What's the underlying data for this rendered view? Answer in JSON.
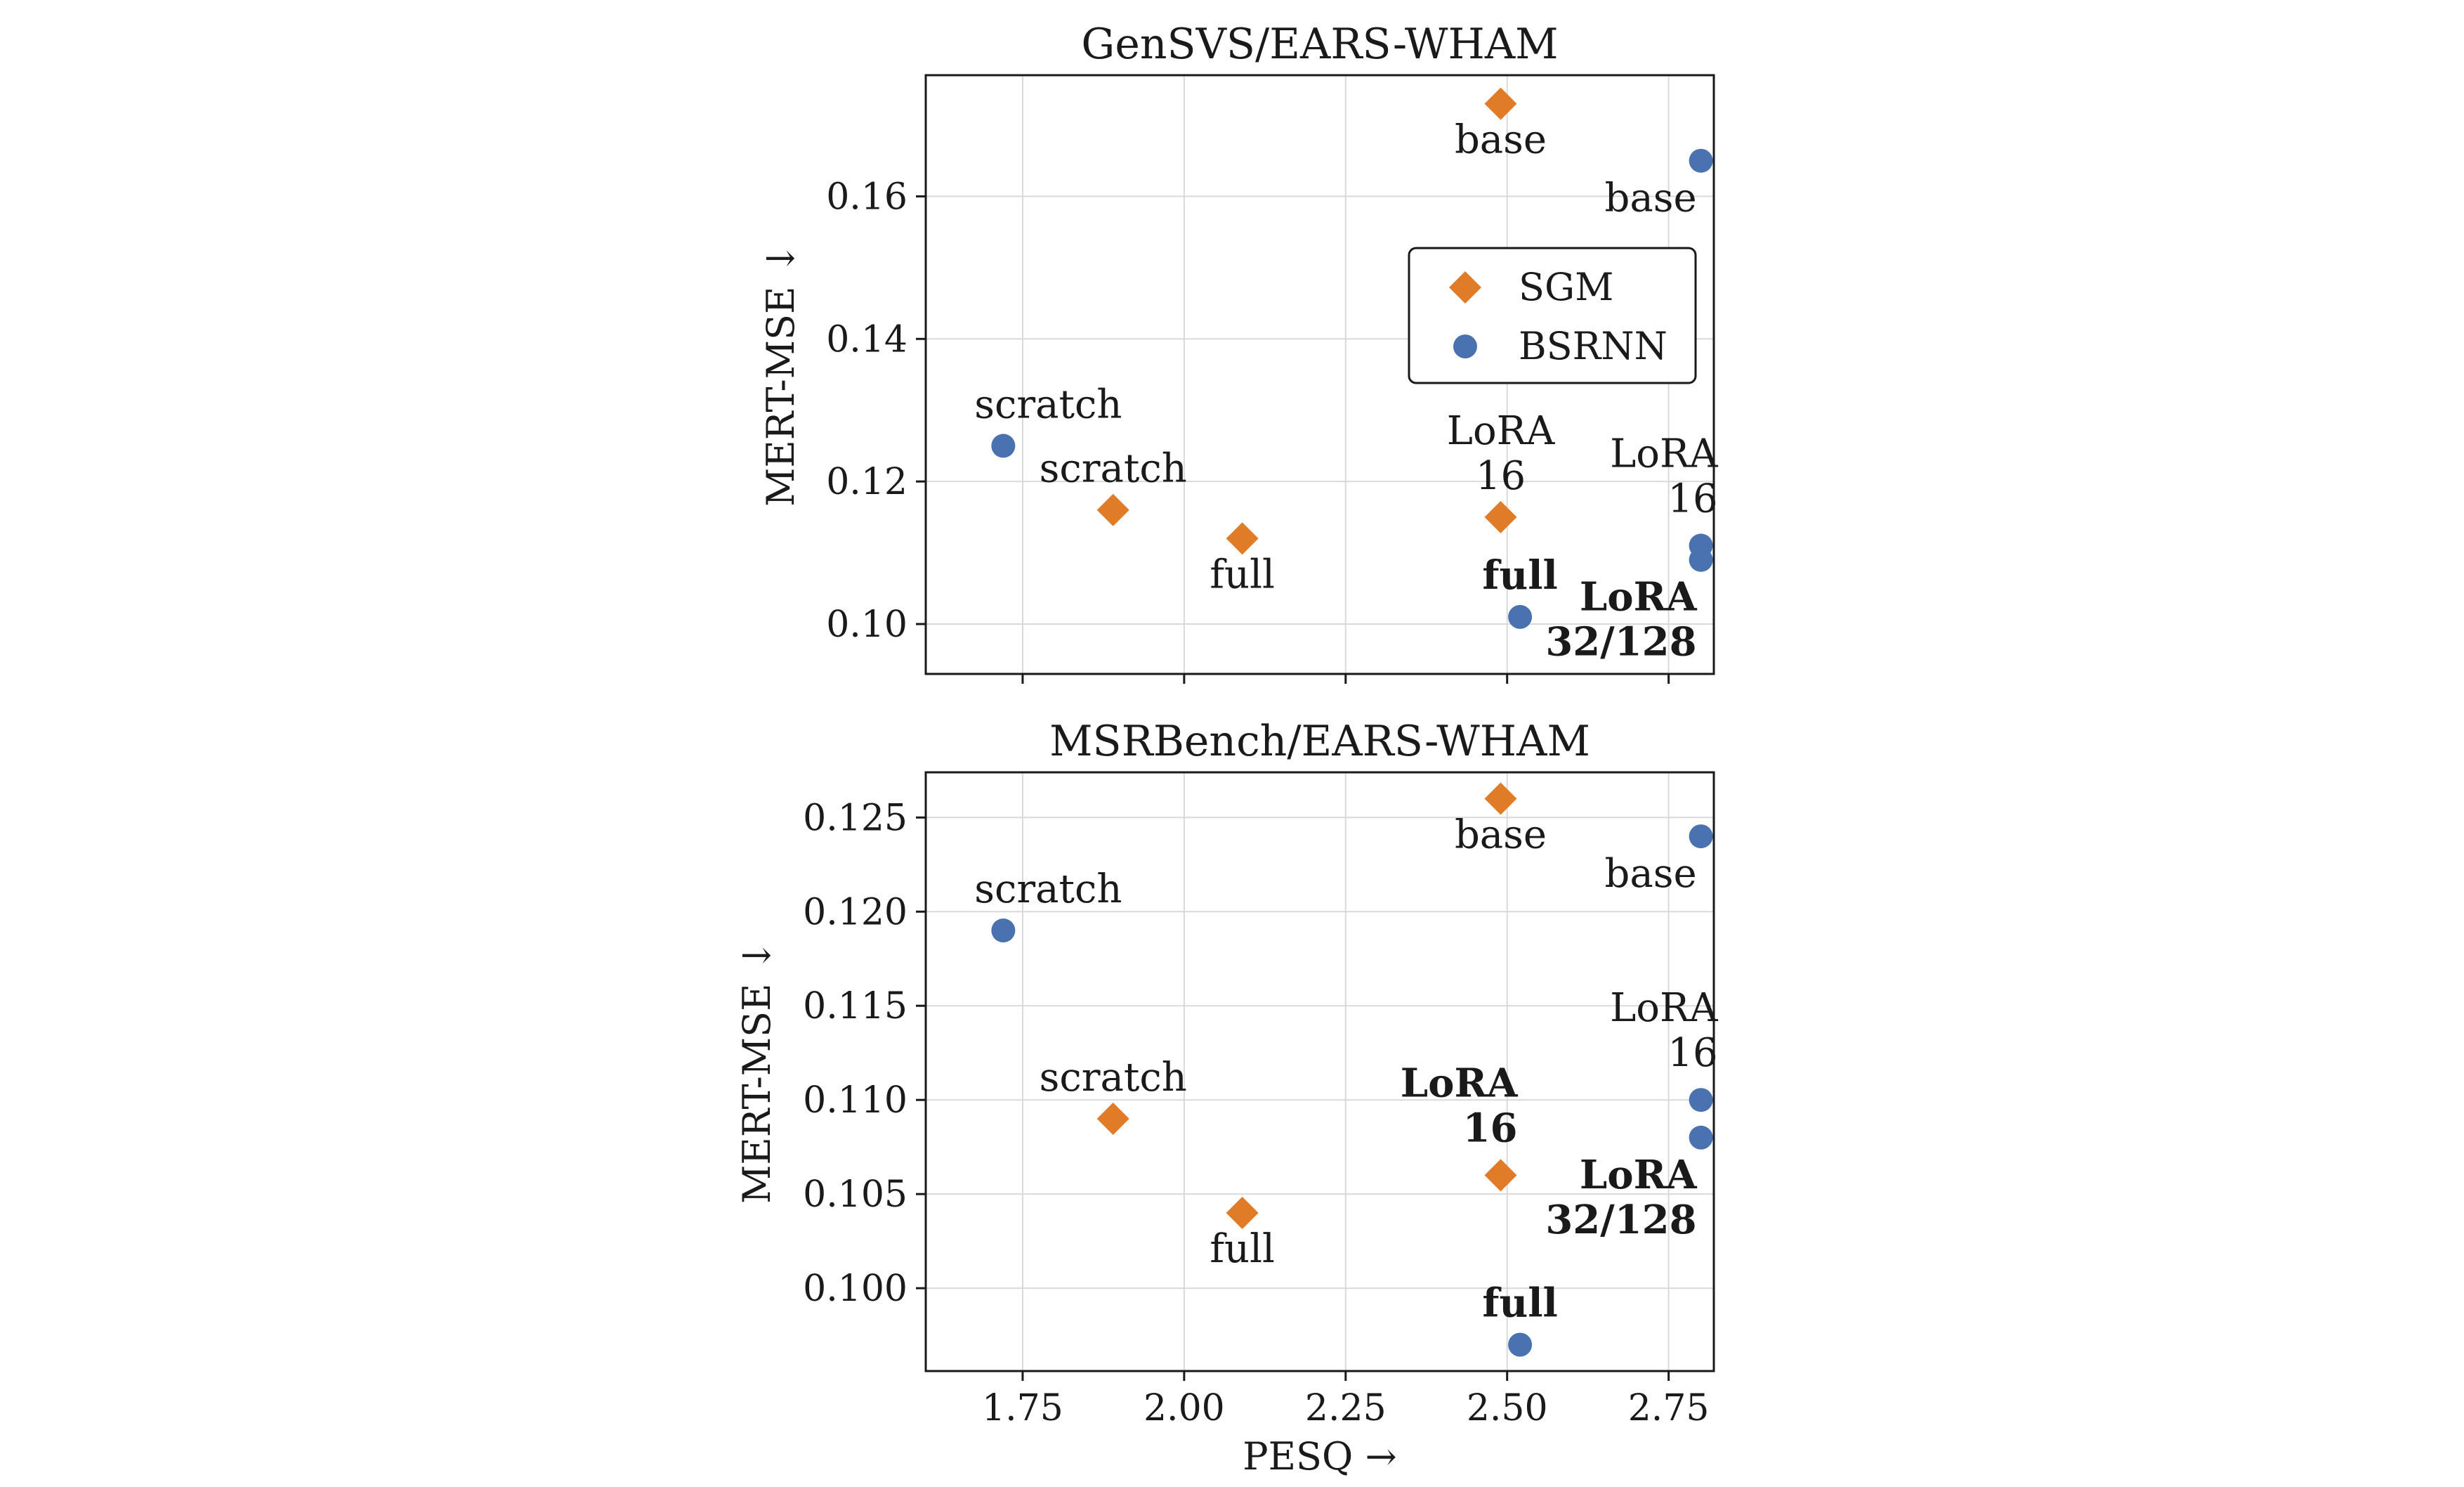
{
  "colors": {
    "SGM": "#e07b28",
    "BSRNN": "#4a72b0"
  },
  "legend": {
    "entries": [
      "SGM",
      "BSRNN"
    ],
    "position": "upper-right inside top panel"
  },
  "chart_data": [
    {
      "type": "scatter",
      "title": "GenSVS/EARS-WHAM",
      "xlabel": "",
      "ylabel": "MERT-MSE ↓",
      "xlim": [
        1.6,
        2.82
      ],
      "ylim": [
        0.093,
        0.177
      ],
      "xticks": [
        1.75,
        2.0,
        2.25,
        2.5,
        2.75
      ],
      "xticklabels": [
        "",
        "",
        "",
        "",
        ""
      ],
      "yticks": [
        0.1,
        0.12,
        0.14,
        0.16
      ],
      "yticklabels": [
        "0.10",
        "0.12",
        "0.14",
        "0.16"
      ],
      "grid": true,
      "series": [
        {
          "name": "SGM",
          "marker": "diamond",
          "points": [
            {
              "x": 2.49,
              "y": 0.173,
              "label": "base",
              "bold": false,
              "labelpos": "below"
            },
            {
              "x": 1.89,
              "y": 0.116,
              "label": "scratch",
              "bold": false,
              "labelpos": "above"
            },
            {
              "x": 2.09,
              "y": 0.112,
              "label": "full",
              "bold": false,
              "labelpos": "below"
            },
            {
              "x": 2.49,
              "y": 0.115,
              "label": "LoRA\n16",
              "bold": false,
              "labelpos": "above"
            }
          ]
        },
        {
          "name": "BSRNN",
          "marker": "circle",
          "points": [
            {
              "x": 2.8,
              "y": 0.165,
              "label": "base",
              "bold": false,
              "labelpos": "below-left"
            },
            {
              "x": 1.72,
              "y": 0.125,
              "label": "scratch",
              "bold": false,
              "labelpos": "above-right"
            },
            {
              "x": 2.8,
              "y": 0.111,
              "label": "LoRA\n16",
              "bold": false,
              "labelpos": "above-left"
            },
            {
              "x": 2.8,
              "y": 0.109,
              "label": "LoRA\n32/128",
              "bold": true,
              "labelpos": "below-left"
            },
            {
              "x": 2.52,
              "y": 0.101,
              "label": "full",
              "bold": true,
              "labelpos": "above"
            }
          ]
        }
      ]
    },
    {
      "type": "scatter",
      "title": "MSRBench/EARS-WHAM",
      "xlabel": "PESQ →",
      "ylabel": "MERT-MSE ↓",
      "xlim": [
        1.6,
        2.82
      ],
      "ylim": [
        0.0956,
        0.1274
      ],
      "xticks": [
        1.75,
        2.0,
        2.25,
        2.5,
        2.75
      ],
      "xticklabels": [
        "1.75",
        "2.00",
        "2.25",
        "2.50",
        "2.75"
      ],
      "yticks": [
        0.1,
        0.105,
        0.11,
        0.115,
        0.12,
        0.125
      ],
      "yticklabels": [
        "0.100",
        "0.105",
        "0.110",
        "0.115",
        "0.120",
        "0.125"
      ],
      "grid": true,
      "series": [
        {
          "name": "SGM",
          "marker": "diamond",
          "points": [
            {
              "x": 2.49,
              "y": 0.126,
              "label": "base",
              "bold": false,
              "labelpos": "below"
            },
            {
              "x": 1.89,
              "y": 0.109,
              "label": "scratch",
              "bold": false,
              "labelpos": "above"
            },
            {
              "x": 2.09,
              "y": 0.104,
              "label": "full",
              "bold": false,
              "labelpos": "below"
            },
            {
              "x": 2.49,
              "y": 0.106,
              "label": "LoRA\n16",
              "bold": true,
              "labelpos": "above-left"
            }
          ]
        },
        {
          "name": "BSRNN",
          "marker": "circle",
          "points": [
            {
              "x": 2.8,
              "y": 0.124,
              "label": "base",
              "bold": false,
              "labelpos": "below-left"
            },
            {
              "x": 1.72,
              "y": 0.119,
              "label": "scratch",
              "bold": false,
              "labelpos": "above-right"
            },
            {
              "x": 2.8,
              "y": 0.11,
              "label": "LoRA\n16",
              "bold": false,
              "labelpos": "above-left"
            },
            {
              "x": 2.8,
              "y": 0.108,
              "label": "LoRA\n32/128",
              "bold": true,
              "labelpos": "below-left"
            },
            {
              "x": 2.52,
              "y": 0.097,
              "label": "full",
              "bold": true,
              "labelpos": "above"
            }
          ]
        }
      ]
    }
  ]
}
